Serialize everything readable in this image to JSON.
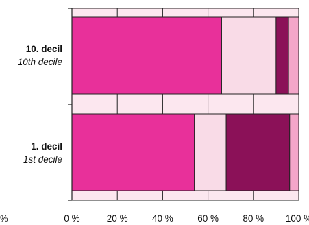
{
  "chart_data": {
    "type": "bar",
    "orientation": "horizontal",
    "stacked": true,
    "categories": [
      {
        "main": "10. decil",
        "sub": "10th decile"
      },
      {
        "main": "1. decil",
        "sub": "1st decile"
      }
    ],
    "series": [
      {
        "color": "#e8309a",
        "values": [
          66,
          54
        ]
      },
      {
        "color": "#f9dbe7",
        "values": [
          24,
          14
        ]
      },
      {
        "color": "#8b1158",
        "values": [
          5.5,
          28
        ]
      },
      {
        "color": "#f4a6c9",
        "values": [
          4.5,
          4
        ]
      }
    ],
    "xticks": [
      "0 %",
      "20 %",
      "40 %",
      "60 %",
      "80 %",
      "100 %"
    ],
    "xlim": [
      0,
      100
    ],
    "background_band_color": "#fce7ef",
    "grid": true
  },
  "stray_text": "%"
}
